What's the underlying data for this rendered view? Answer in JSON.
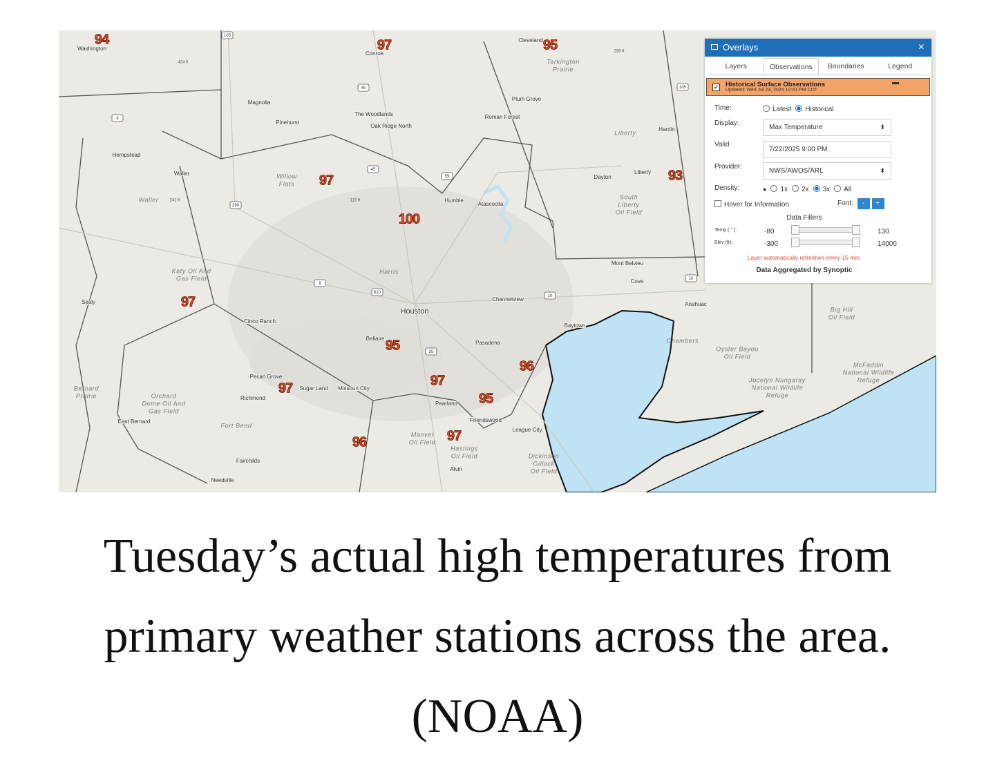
{
  "map": {
    "observations": [
      94,
      97,
      95,
      97,
      100,
      93,
      97,
      95,
      96,
      97,
      97,
      95,
      97,
      96
    ],
    "places": [
      "Washington",
      "Conroe",
      "Cleveland",
      "Magnolia",
      "The Woodlands",
      "Oak Ridge North",
      "Pinehurst",
      "Plum Grove",
      "Roman Forest",
      "Hardin",
      "Hempstead",
      "Waller",
      "Dayton",
      "Liberty",
      "Humble",
      "Atascocita",
      "Mont Belvieu",
      "Cove",
      "Sealy",
      "Houston",
      "Channelview",
      "Anahuac",
      "Cinco Ranch",
      "Baytown",
      "Bellaire",
      "Pasadena",
      "Pecan Grove",
      "Sugar Land",
      "Missouri City",
      "Richmond",
      "Pearland",
      "East Bernard",
      "Friendswood",
      "League City",
      "Fairchilds",
      "Alvin",
      "Needville"
    ],
    "features": [
      [
        "Tarkington",
        "Prairie"
      ],
      [
        "Liberty"
      ],
      [
        "Willow",
        "Flats"
      ],
      [
        "Waller"
      ],
      [
        "South",
        "Liberty",
        "Oil Field"
      ],
      [
        "Harris"
      ],
      [
        "Katy Oil And",
        "Gas Field"
      ],
      [
        "Big Hill",
        "Oil Field"
      ],
      [
        "Chambers"
      ],
      [
        "Oyster Bayou",
        "Oil Field"
      ],
      [
        "Bernard",
        "Prairie"
      ],
      [
        "Orchard",
        "Dome Oil And",
        "Gas Field"
      ],
      [
        "McFaddin",
        "National Wildlife",
        "Refuge"
      ],
      [
        "Jocelyn Nungaray",
        "National Wildlife",
        "Refuge"
      ],
      [
        "Fort Bend"
      ],
      [
        "Manvel",
        "Oil Field"
      ],
      [
        "Hastings",
        "Oil Field"
      ],
      [
        "Dickinson",
        "Gillock",
        "Oil Field"
      ]
    ],
    "elevations": [
      "424 ft",
      "241 ft",
      "119 ft",
      "238 ft"
    ],
    "shields": [
      "105",
      "45",
      "6",
      "45",
      "59",
      "290",
      "8",
      "610",
      "35",
      "10",
      "10",
      "105"
    ]
  },
  "panel": {
    "title": "Overlays",
    "close": "×",
    "tabs": [
      "Layers",
      "Observations",
      "Boundaries",
      "Legend"
    ],
    "layer": {
      "name": "Historical Surface Observations",
      "updated": "Updated: Wed Jul 23, 2025 10:41 PM CDT"
    },
    "time": {
      "label": "Time:",
      "options": [
        "Latest",
        "Historical"
      ]
    },
    "display": {
      "label": "Display:",
      "value": "Max Temperature"
    },
    "valid": {
      "label": "Valid",
      "value": "7/22/2025 9:00 PM"
    },
    "provider": {
      "label": "Provider:",
      "value": "NWS/AWOS/ARL"
    },
    "density": {
      "label": "Density:",
      "options": [
        "1x",
        "2x",
        "3x",
        "All"
      ]
    },
    "hover": "Hover for Information",
    "font": {
      "label": "Font:",
      "buttons": [
        "-",
        "+"
      ]
    },
    "filters": {
      "title": "Data Filters",
      "temp": {
        "label": "Temp ( ° ):",
        "min": -80,
        "max": 130
      },
      "elev": {
        "label": "Elev (ft):",
        "min": -300,
        "max": 14000
      }
    },
    "refresh": "Layer automatically refreshes every 15 min.",
    "credit": "Data Aggregated by Synoptic"
  },
  "caption": "Tuesday’s actual high temperatures from primary weather stations across the area. (NOAA)"
}
